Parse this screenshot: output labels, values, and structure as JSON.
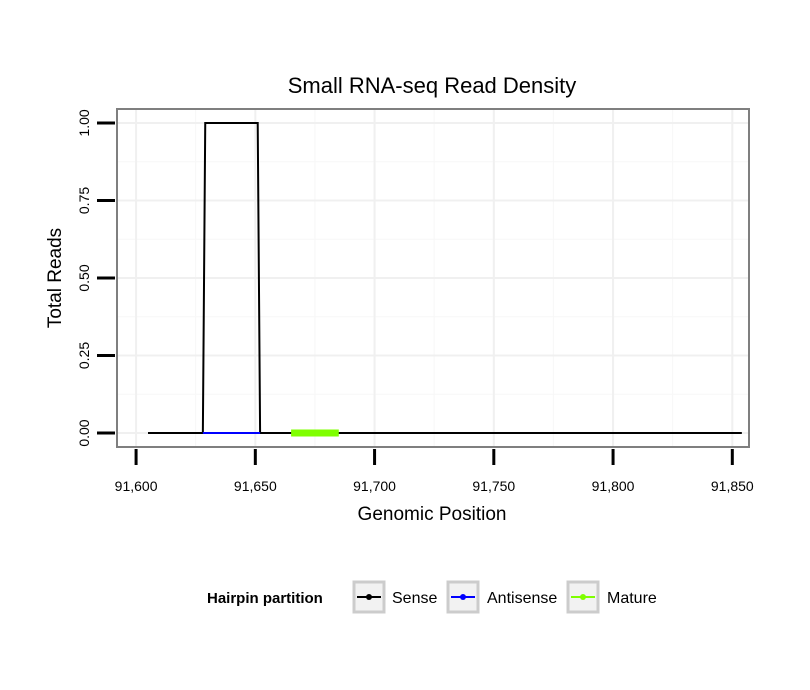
{
  "chart_data": {
    "type": "line",
    "title": "Small RNA-seq Read Density",
    "xlabel": "Genomic Position",
    "ylabel": "Total Reads",
    "xlim": [
      91592,
      91857
    ],
    "ylim": [
      -0.045,
      1.045
    ],
    "x_ticks": [
      91600,
      91650,
      91700,
      91750,
      91800,
      91850
    ],
    "x_tick_labels": [
      "91,600",
      "91,650",
      "91,700",
      "91,750",
      "91,800",
      "91,850"
    ],
    "y_ticks": [
      0,
      0.25,
      0.5,
      0.75,
      1.0
    ],
    "y_tick_labels": [
      "0.00",
      "0.25",
      "0.50",
      "0.75",
      "1.00"
    ],
    "grid": true,
    "legend": {
      "title": "Hairpin partition",
      "position": "bottom",
      "entries": [
        {
          "label": "Sense",
          "color": "#000000"
        },
        {
          "label": "Antisense",
          "color": "#0000ff"
        },
        {
          "label": "Mature",
          "color": "#7fff00"
        }
      ]
    },
    "series": [
      {
        "name": "Sense",
        "color": "#000000",
        "x": [
          91605,
          91628,
          91629,
          91651,
          91652,
          91854
        ],
        "y": [
          0,
          0,
          1,
          1,
          0,
          0
        ]
      },
      {
        "name": "Antisense",
        "color": "#0000ff",
        "x": [
          91628,
          91652
        ],
        "y": [
          0,
          0
        ]
      },
      {
        "name": "Mature",
        "color": "#7fff00",
        "x": [
          91665,
          91685
        ],
        "y": [
          0,
          0
        ]
      }
    ]
  }
}
